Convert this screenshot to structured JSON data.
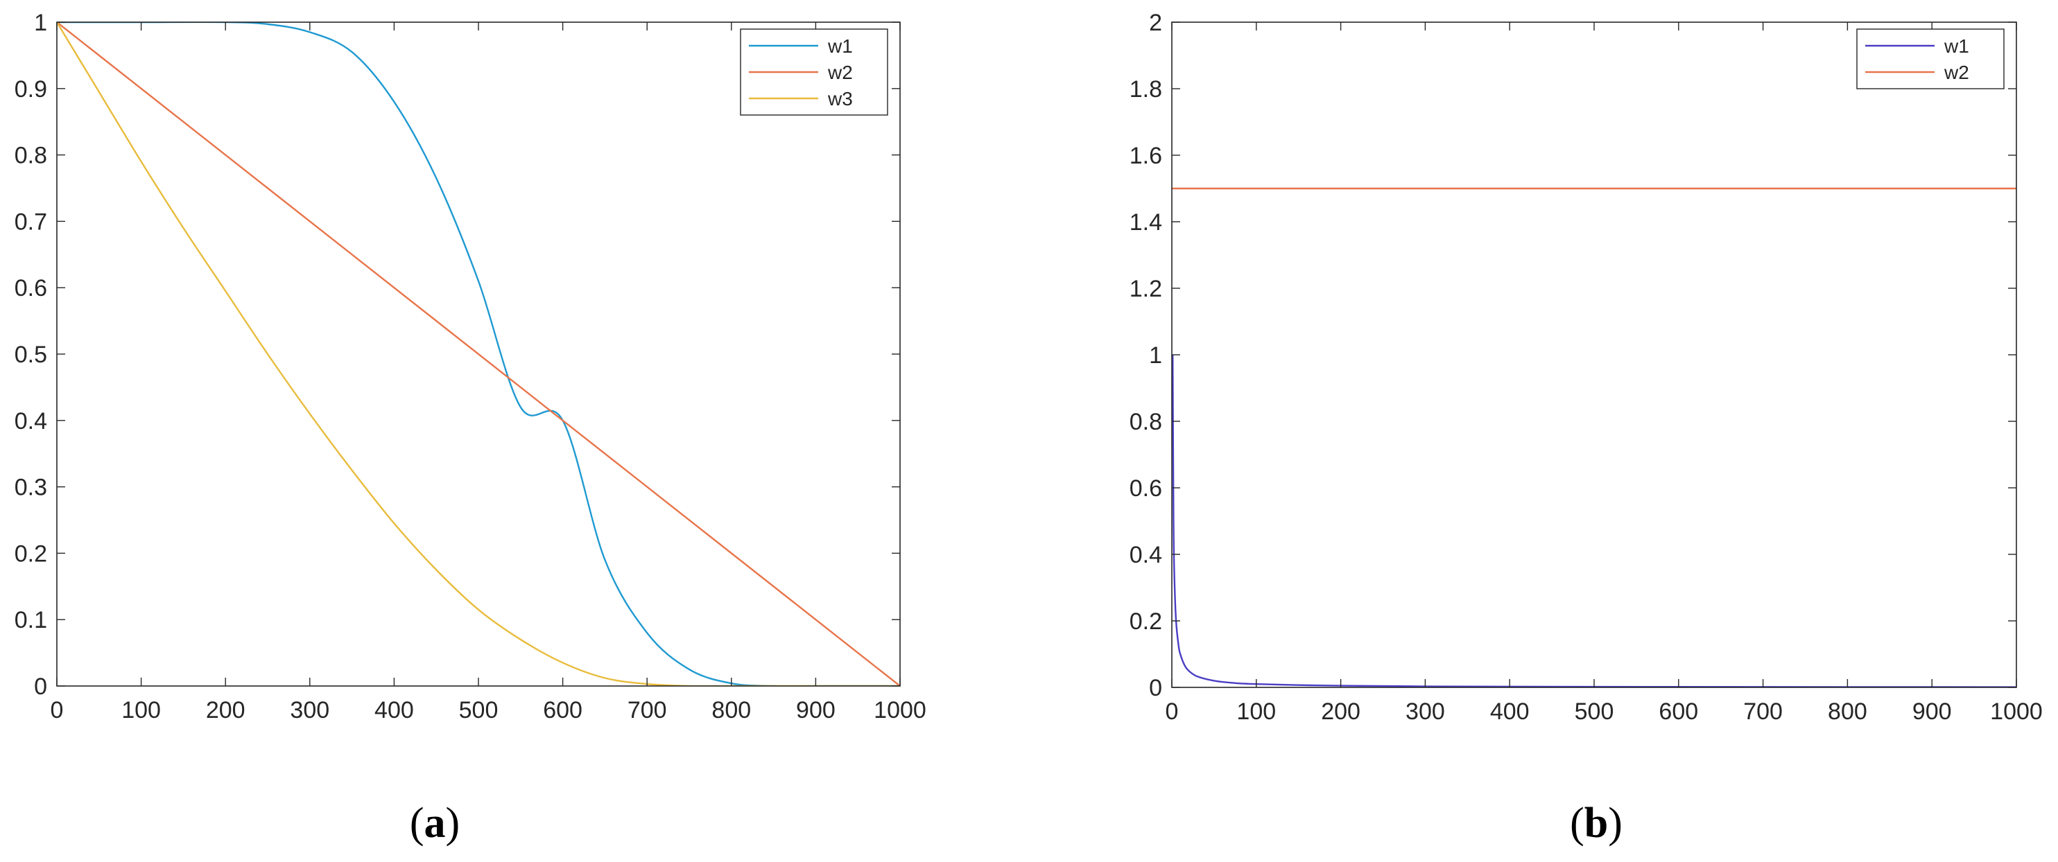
{
  "chart_data": [
    {
      "panel_label": "(a)",
      "panel_letter": "a",
      "type": "line",
      "title": "",
      "xlabel": "",
      "ylabel": "",
      "xlim": [
        0,
        1000
      ],
      "ylim": [
        0,
        1
      ],
      "xticks": [
        0,
        100,
        200,
        300,
        400,
        500,
        600,
        700,
        800,
        900,
        1000
      ],
      "yticks": [
        0,
        0.1,
        0.2,
        0.3,
        0.4,
        0.5,
        0.6,
        0.7,
        0.8,
        0.9,
        1
      ],
      "grid": false,
      "legend_position": "top-right",
      "series": [
        {
          "name": "w1",
          "color": "#1f9ad1",
          "x": [
            0,
            100,
            200,
            250,
            300,
            350,
            400,
            450,
            500,
            550,
            600,
            650,
            700,
            750,
            800,
            850,
            900,
            1000
          ],
          "y": [
            1.0,
            1.0,
            1.0,
            0.997,
            0.985,
            0.955,
            0.88,
            0.765,
            0.61,
            0.42,
            0.4,
            0.19,
            0.08,
            0.025,
            0.004,
            0.0,
            0.0,
            0.0
          ]
        },
        {
          "name": "w2",
          "color": "#e8744a",
          "x": [
            0,
            1000
          ],
          "y": [
            1.0,
            0.0
          ]
        },
        {
          "name": "w3",
          "color": "#e8bc3c",
          "x": [
            0,
            50,
            100,
            150,
            200,
            250,
            300,
            350,
            400,
            450,
            500,
            550,
            600,
            650,
            700,
            750,
            800,
            900,
            1000
          ],
          "y": [
            1.0,
            0.895,
            0.79,
            0.69,
            0.595,
            0.5,
            0.41,
            0.325,
            0.245,
            0.175,
            0.115,
            0.07,
            0.035,
            0.012,
            0.003,
            0.0,
            0.0,
            0.0,
            0.0
          ]
        }
      ]
    },
    {
      "panel_label": "(b)",
      "panel_letter": "b",
      "type": "line",
      "title": "",
      "xlabel": "",
      "ylabel": "",
      "xlim": [
        0,
        1000
      ],
      "ylim": [
        0,
        2
      ],
      "xticks": [
        0,
        100,
        200,
        300,
        400,
        500,
        600,
        700,
        800,
        900,
        1000
      ],
      "yticks": [
        0,
        0.2,
        0.4,
        0.6,
        0.8,
        1,
        1.2,
        1.4,
        1.6,
        1.8,
        2
      ],
      "grid": false,
      "legend_position": "top-right",
      "series": [
        {
          "name": "w1",
          "color": "#4a3ec4",
          "x": [
            1,
            2,
            3,
            5,
            8,
            10,
            15,
            20,
            30,
            50,
            75,
            100,
            150,
            200,
            300,
            500,
            700,
            1000
          ],
          "y": [
            1.0,
            0.5,
            0.333,
            0.2,
            0.125,
            0.1,
            0.067,
            0.05,
            0.033,
            0.02,
            0.013,
            0.01,
            0.007,
            0.005,
            0.003,
            0.002,
            0.0014,
            0.001
          ]
        },
        {
          "name": "w2",
          "color": "#e8744a",
          "x": [
            0,
            1000
          ],
          "y": [
            1.5,
            1.5
          ]
        }
      ]
    }
  ]
}
